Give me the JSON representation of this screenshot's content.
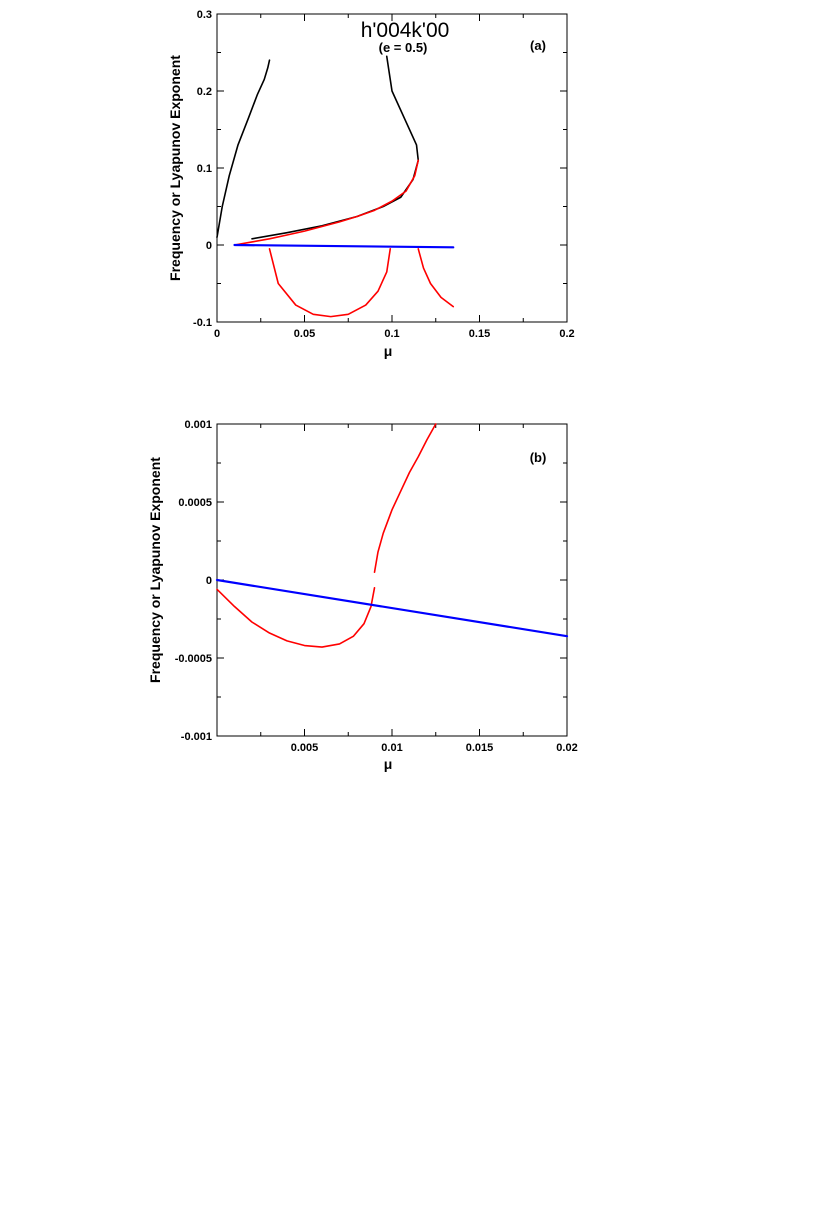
{
  "chart_data": [
    {
      "type": "line",
      "panel_label": "(a)",
      "title": "h'004k'00",
      "subtitle": "(e = 0.5)",
      "xlabel": "μ",
      "ylabel": "Frequency or Lyapunov Exponent",
      "xlim": [
        0,
        0.2
      ],
      "ylim": [
        -0.1,
        0.3
      ],
      "xticks": [
        0,
        0.05,
        0.1,
        0.15,
        0.2
      ],
      "xtick_labels": [
        "0",
        "0.05",
        "0.1",
        "0.15",
        "0.2"
      ],
      "yticks": [
        -0.1,
        0,
        0.1,
        0.2,
        0.3
      ],
      "ytick_labels": [
        "-0.1",
        "0",
        "0.1",
        "0.2",
        "0.3"
      ],
      "grid": false,
      "series": [
        {
          "color": "#000000",
          "x": [
            0.0,
            0.003,
            0.007,
            0.012,
            0.018,
            0.023,
            0.027,
            0.029,
            0.03
          ],
          "y": [
            0.01,
            0.05,
            0.09,
            0.13,
            0.165,
            0.195,
            0.215,
            0.23,
            0.24
          ]
        },
        {
          "color": "#000000",
          "x": [
            0.02,
            0.04,
            0.06,
            0.08,
            0.095,
            0.105,
            0.112,
            0.115,
            0.114,
            0.108,
            0.1,
            0.097
          ],
          "y": [
            0.008,
            0.016,
            0.025,
            0.037,
            0.05,
            0.062,
            0.085,
            0.11,
            0.13,
            0.16,
            0.2,
            0.245
          ]
        },
        {
          "color": "#ff0000",
          "x": [
            0.01,
            0.02,
            0.03,
            0.04,
            0.05,
            0.06,
            0.07,
            0.08,
            0.09,
            0.1,
            0.108,
            0.113,
            0.115
          ],
          "y": [
            0.0,
            0.004,
            0.008,
            0.013,
            0.018,
            0.024,
            0.03,
            0.037,
            0.045,
            0.057,
            0.07,
            0.09,
            0.11
          ]
        },
        {
          "color": "#ff0000",
          "x": [
            0.03,
            0.035,
            0.045,
            0.055,
            0.065,
            0.075,
            0.085,
            0.092,
            0.097,
            0.099
          ],
          "y": [
            -0.005,
            -0.05,
            -0.078,
            -0.09,
            -0.093,
            -0.09,
            -0.078,
            -0.06,
            -0.035,
            -0.005
          ]
        },
        {
          "color": "#ff0000",
          "x": [
            0.115,
            0.118,
            0.122,
            0.128,
            0.135
          ],
          "y": [
            -0.005,
            -0.03,
            -0.05,
            -0.068,
            -0.08
          ]
        },
        {
          "color": "#0000ff",
          "x": [
            0.01,
            0.135
          ],
          "y": [
            0.0,
            -0.003
          ]
        }
      ]
    },
    {
      "type": "line",
      "panel_label": "(b)",
      "xlabel": "μ",
      "ylabel": "Frequency or Lyapunov Exponent",
      "xlim": [
        0.0,
        0.02
      ],
      "ylim": [
        -0.001,
        0.001
      ],
      "xticks": [
        0.005,
        0.01,
        0.015,
        0.02
      ],
      "xtick_labels": [
        "0.005",
        "0.01",
        "0.015",
        "0.02"
      ],
      "yticks": [
        -0.001,
        -0.0005,
        0,
        0.0005,
        0.001
      ],
      "ytick_labels": [
        "-0.001",
        "-0.0005",
        "0",
        "0.0005",
        "0.001"
      ],
      "grid": false,
      "series": [
        {
          "color": "#ff0000",
          "x": [
            0.0,
            0.001,
            0.002,
            0.003,
            0.004,
            0.005,
            0.006,
            0.007,
            0.0078,
            0.0084,
            0.0088,
            0.009
          ],
          "y": [
            -6e-05,
            -0.00017,
            -0.00027,
            -0.00034,
            -0.00039,
            -0.00042,
            -0.00043,
            -0.00041,
            -0.00036,
            -0.00028,
            -0.00017,
            -5e-05
          ]
        },
        {
          "color": "#ff0000",
          "x": [
            0.009,
            0.0092,
            0.0095,
            0.01,
            0.0105,
            0.011,
            0.0115,
            0.012,
            0.0125
          ],
          "y": [
            5e-05,
            0.00018,
            0.0003,
            0.00045,
            0.00057,
            0.00069,
            0.00079,
            0.0009,
            0.001
          ]
        },
        {
          "color": "#0000ff",
          "x": [
            0.0,
            0.02
          ],
          "y": [
            0.0,
            -0.00036
          ]
        }
      ]
    }
  ]
}
